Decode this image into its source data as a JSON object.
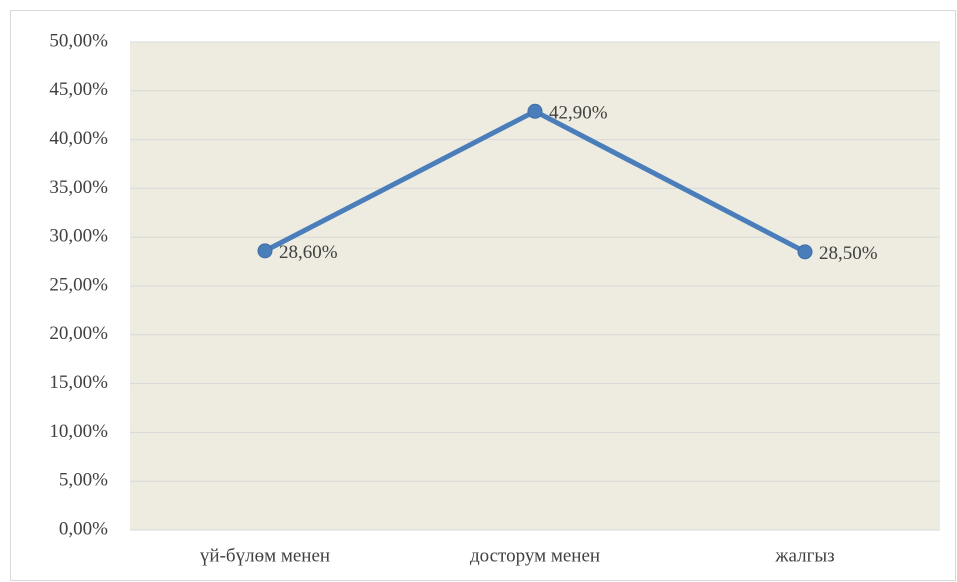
{
  "chart_data": {
    "type": "line",
    "categories": [
      "үй-бүлөм менен",
      "досторум менен",
      "жалгыз"
    ],
    "series": [
      {
        "name": null,
        "color": "#4a7ebb",
        "values": [
          28.6,
          42.9,
          28.5
        ],
        "value_labels": [
          "28,60%",
          "42,90%",
          "28,50%"
        ]
      }
    ],
    "ylim": [
      0,
      50
    ],
    "yticks": [
      {
        "value": 0,
        "label": "0,00%"
      },
      {
        "value": 5,
        "label": "5,00%"
      },
      {
        "value": 10,
        "label": "10,00%"
      },
      {
        "value": 15,
        "label": "15,00%"
      },
      {
        "value": 20,
        "label": "20,00%"
      },
      {
        "value": 25,
        "label": "25,00%"
      },
      {
        "value": 30,
        "label": "30,00%"
      },
      {
        "value": 35,
        "label": "35,00%"
      },
      {
        "value": 40,
        "label": "40,00%"
      },
      {
        "value": 45,
        "label": "45,00%"
      },
      {
        "value": 50,
        "label": "50,00%"
      }
    ],
    "grid": true,
    "plot_background": "#eeebe0"
  }
}
